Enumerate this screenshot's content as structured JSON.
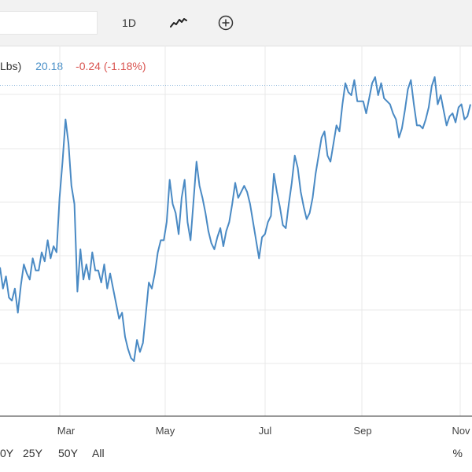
{
  "toolbar": {
    "interval_label": "1D",
    "line_icon": "line-chart-icon",
    "add_icon": "plus-circle-icon"
  },
  "legend": {
    "unit_label": "Lbs)",
    "price": "20.18",
    "change": "-0.24 (-1.18%)"
  },
  "range_buttons": [
    "0Y",
    "25Y",
    "50Y",
    "All"
  ],
  "percent_button": "%",
  "colors": {
    "line": "#4a8ac4",
    "positive": "#4a90c8",
    "negative": "#d9534f",
    "grid": "#e8e8e8",
    "reference_line": "#8fb8dc"
  },
  "chart_data": {
    "type": "line",
    "x_tick_labels": [
      "Mar",
      "May",
      "Jul",
      "Sep",
      "Nov"
    ],
    "ylim": [
      0,
      1
    ],
    "grid": true,
    "reference_value": 0.97,
    "series": [
      {
        "values": [
          0.37,
          0.3,
          0.34,
          0.27,
          0.26,
          0.3,
          0.22,
          0.31,
          0.38,
          0.35,
          0.33,
          0.4,
          0.36,
          0.36,
          0.42,
          0.39,
          0.46,
          0.4,
          0.44,
          0.42,
          0.6,
          0.72,
          0.86,
          0.78,
          0.64,
          0.58,
          0.29,
          0.43,
          0.33,
          0.38,
          0.33,
          0.42,
          0.36,
          0.36,
          0.32,
          0.38,
          0.3,
          0.35,
          0.3,
          0.25,
          0.2,
          0.22,
          0.14,
          0.1,
          0.07,
          0.06,
          0.13,
          0.09,
          0.12,
          0.22,
          0.32,
          0.3,
          0.35,
          0.42,
          0.46,
          0.46,
          0.52,
          0.66,
          0.58,
          0.55,
          0.48,
          0.6,
          0.66,
          0.52,
          0.46,
          0.59,
          0.72,
          0.64,
          0.6,
          0.55,
          0.49,
          0.45,
          0.43,
          0.47,
          0.5,
          0.44,
          0.49,
          0.52,
          0.58,
          0.65,
          0.6,
          0.62,
          0.64,
          0.62,
          0.58,
          0.52,
          0.46,
          0.4,
          0.47,
          0.48,
          0.52,
          0.54,
          0.68,
          0.62,
          0.57,
          0.51,
          0.5,
          0.58,
          0.65,
          0.74,
          0.7,
          0.62,
          0.57,
          0.53,
          0.55,
          0.6,
          0.68,
          0.74,
          0.8,
          0.82,
          0.74,
          0.72,
          0.78,
          0.84,
          0.82,
          0.91,
          0.98,
          0.95,
          0.94,
          0.99,
          0.92,
          0.92,
          0.92,
          0.88,
          0.93,
          0.98,
          1.0,
          0.94,
          0.98,
          0.93,
          0.92,
          0.91,
          0.88,
          0.86,
          0.8,
          0.83,
          0.89,
          0.96,
          0.99,
          0.91,
          0.84,
          0.84,
          0.83,
          0.86,
          0.9,
          0.97,
          1.0,
          0.91,
          0.94,
          0.89,
          0.84,
          0.87,
          0.88,
          0.85,
          0.9,
          0.91,
          0.86,
          0.87,
          0.91
        ]
      }
    ]
  }
}
